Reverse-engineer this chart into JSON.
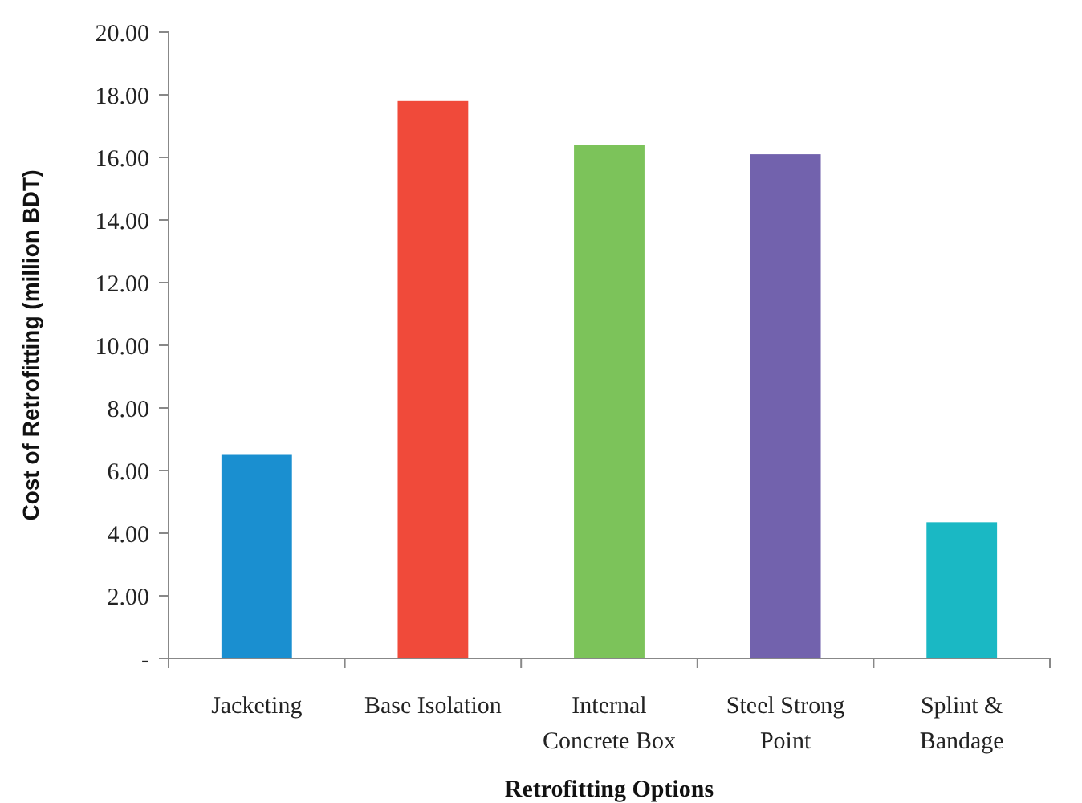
{
  "chart_data": {
    "type": "bar",
    "xlabel": "Retrofitting Options",
    "ylabel": "Cost of Retrofitting (million BDT)",
    "categories": [
      "Jacketing",
      "Base Isolation",
      "Internal Concrete Box",
      "Steel Strong Point",
      "Splint & Bandage"
    ],
    "values": [
      6.5,
      17.8,
      16.4,
      16.1,
      4.35
    ],
    "colors": [
      "#1a8fd0",
      "#f04a3a",
      "#7cc35a",
      "#7262ad",
      "#1ab8c4"
    ],
    "ylim": [
      0,
      20
    ],
    "yticks": [
      {
        "value": 0,
        "label": "-"
      },
      {
        "value": 2,
        "label": "2.00"
      },
      {
        "value": 4,
        "label": "4.00"
      },
      {
        "value": 6,
        "label": "6.00"
      },
      {
        "value": 8,
        "label": "8.00"
      },
      {
        "value": 10,
        "label": "10.00"
      },
      {
        "value": 12,
        "label": "12.00"
      },
      {
        "value": 14,
        "label": "14.00"
      },
      {
        "value": 16,
        "label": "16.00"
      },
      {
        "value": 18,
        "label": "18.00"
      },
      {
        "value": 20,
        "label": "20.00"
      }
    ],
    "grid": false
  }
}
